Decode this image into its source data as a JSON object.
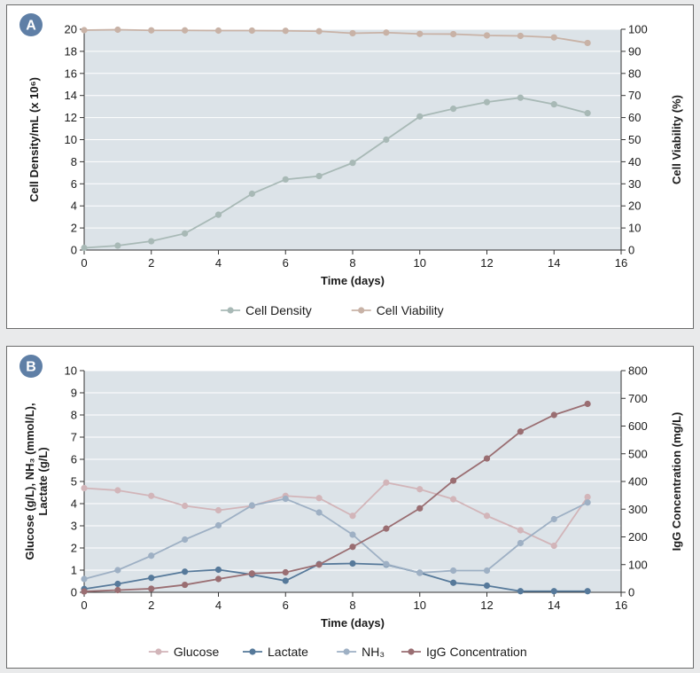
{
  "chart_data": [
    {
      "type": "line",
      "panel_label": "A",
      "xlabel": "Time (days)",
      "ylabel_left": "Cell Density/mL (x 10⁶)",
      "ylabel_right": "Cell Viability (%)",
      "xlim": [
        0,
        16
      ],
      "xticks": [
        0,
        2,
        4,
        6,
        8,
        10,
        12,
        14,
        16
      ],
      "ylim_left": [
        0,
        20
      ],
      "yticks_left": [
        0,
        2,
        4,
        6,
        8,
        10,
        12,
        14,
        16,
        18,
        20
      ],
      "ylim_right": [
        0,
        100
      ],
      "yticks_right": [
        0,
        10,
        20,
        30,
        40,
        50,
        60,
        70,
        80,
        90,
        100
      ],
      "grid": true,
      "plot_background": "#dce3e8",
      "legend_position": "bottom",
      "x": [
        0,
        1,
        2,
        3,
        4,
        5,
        6,
        7,
        8,
        9,
        10,
        11,
        12,
        13,
        14,
        15
      ],
      "series": [
        {
          "name": "Cell Density",
          "axis": "left",
          "color": "#a8b9b6",
          "values": [
            0.2,
            0.4,
            0.8,
            1.5,
            3.2,
            5.1,
            6.4,
            6.7,
            7.9,
            10.0,
            12.1,
            12.8,
            13.4,
            13.8,
            13.2,
            12.4
          ]
        },
        {
          "name": "Cell Viability",
          "axis": "right",
          "color": "#c8b2a6",
          "values": [
            99.6,
            99.8,
            99.5,
            99.5,
            99.4,
            99.4,
            99.3,
            99.1,
            98.2,
            98.5,
            97.9,
            97.8,
            97.2,
            97.0,
            96.3,
            93.8
          ]
        }
      ]
    },
    {
      "type": "line",
      "panel_label": "B",
      "xlabel": "Time (days)",
      "ylabel_left_line1": "Glucose (g/L), NH₃ (mmol/L),",
      "ylabel_left_line2": "Lactate (g/L)",
      "ylabel_right": "IgG Concentration (mg/L)",
      "xlim": [
        0,
        16
      ],
      "xticks": [
        0,
        2,
        4,
        6,
        8,
        10,
        12,
        14,
        16
      ],
      "ylim_left": [
        0,
        10
      ],
      "yticks_left": [
        0,
        1,
        2,
        3,
        4,
        5,
        6,
        7,
        8,
        9,
        10
      ],
      "ylim_right": [
        0,
        800
      ],
      "yticks_right": [
        0,
        100,
        200,
        300,
        400,
        500,
        600,
        700,
        800
      ],
      "grid": true,
      "plot_background": "#dce3e8",
      "legend_position": "bottom",
      "x": [
        0,
        1,
        2,
        3,
        4,
        5,
        6,
        7,
        8,
        9,
        10,
        11,
        12,
        13,
        14,
        15
      ],
      "series": [
        {
          "name": "Glucose",
          "axis": "left",
          "color": "#d2b5b9",
          "values": [
            4.7,
            4.6,
            4.35,
            3.9,
            3.7,
            3.9,
            4.35,
            4.25,
            3.45,
            4.95,
            4.65,
            4.2,
            3.45,
            2.8,
            2.1,
            4.3
          ]
        },
        {
          "name": "Lactate",
          "axis": "left",
          "color": "#56799a",
          "values": [
            0.15,
            0.38,
            0.65,
            0.93,
            1.02,
            0.8,
            0.52,
            1.27,
            1.3,
            1.25,
            0.88,
            0.43,
            0.3,
            0.05,
            0.05,
            0.05
          ]
        },
        {
          "name": "NH₃",
          "axis": "left",
          "color": "#9eb0c4",
          "values": [
            0.6,
            1.0,
            1.65,
            2.38,
            3.02,
            3.92,
            4.22,
            3.6,
            2.6,
            1.27,
            0.88,
            0.98,
            0.98,
            2.22,
            3.3,
            4.05
          ]
        },
        {
          "name": "IgG Concentration",
          "axis": "right",
          "color": "#9a6e72",
          "values": [
            3,
            8,
            13,
            27,
            48,
            68,
            72,
            100,
            164,
            230,
            303,
            403,
            483,
            580,
            640,
            680
          ]
        }
      ]
    }
  ]
}
